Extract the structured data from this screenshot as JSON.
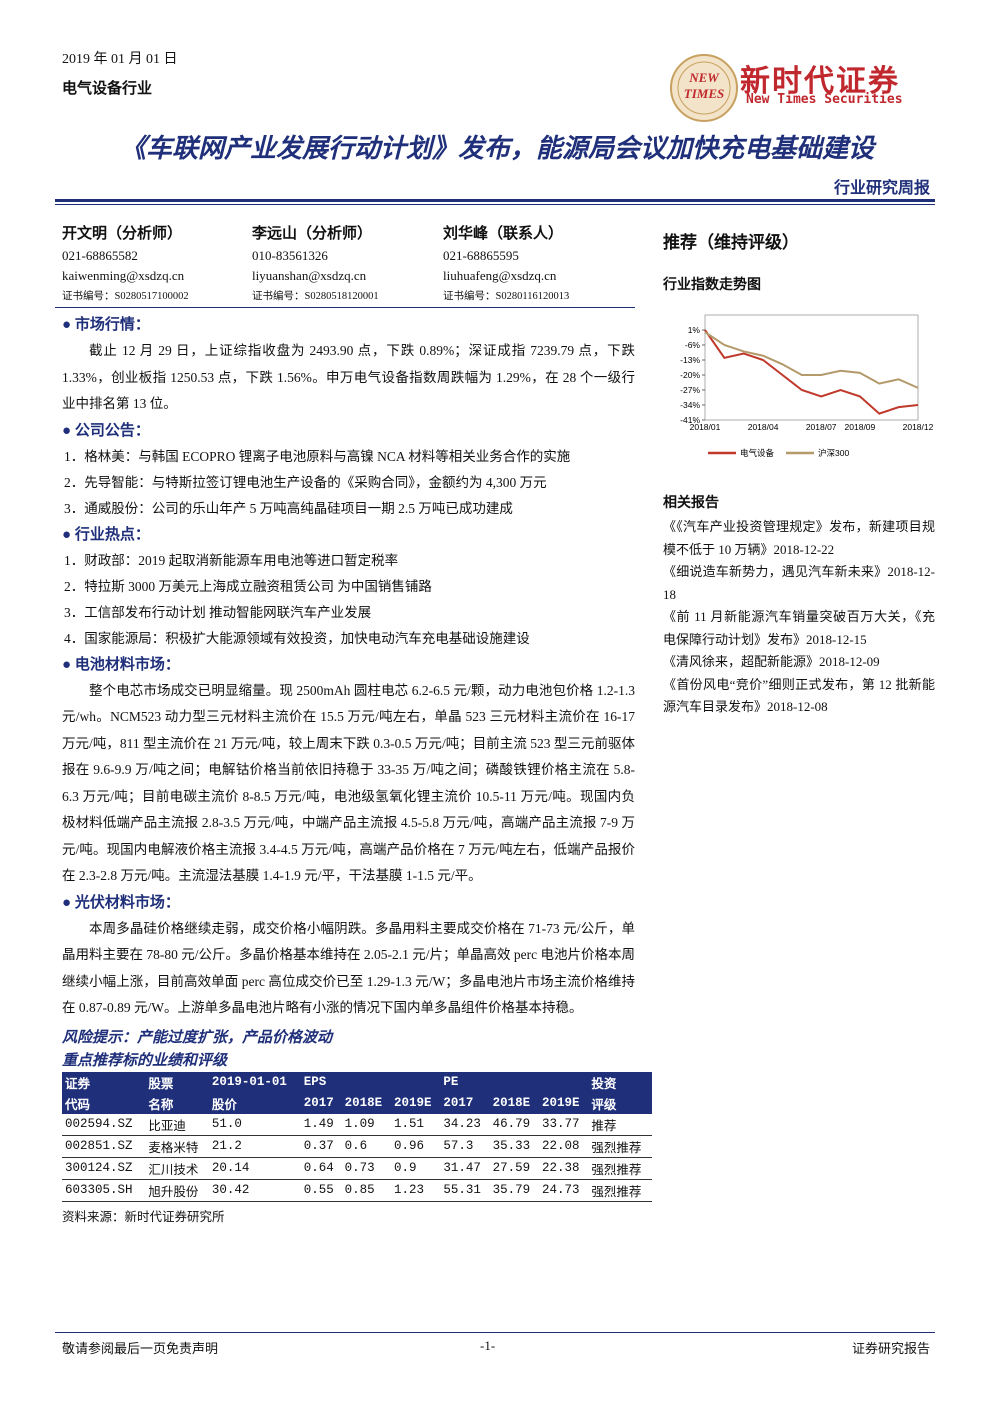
{
  "header": {
    "date": "2019 年 01 月 01 日",
    "industry": "电气设备行业",
    "logo_badge": [
      "NEW",
      "TIMES"
    ],
    "logo_cn": "新时代证券",
    "logo_en": "New Times Securities",
    "title": "《车联网产业发展行动计划》发布，能源局会议加快充电基础建设",
    "report_type": "行业研究周报"
  },
  "analysts": [
    {
      "name": "开文明（分析师）",
      "phone": "021-68865582",
      "email": "kaiwenming@xsdzq.cn",
      "cert": "证书编号：S0280517100002"
    },
    {
      "name": "李远山（分析师）",
      "phone": "010-83561326",
      "email": "liyuanshan@xsdzq.cn",
      "cert": "证书编号：S0280518120001"
    },
    {
      "name": "刘华峰（联系人）",
      "phone": "021-68865595",
      "email": "liuhuafeng@xsdzq.cn",
      "cert": "证书编号：S0280116120013"
    }
  ],
  "rating": "推荐（维持评级）",
  "chart": {
    "type": "line",
    "title": "行业指数走势图",
    "categories": [
      "2018/01",
      null,
      null,
      "2018/04",
      null,
      null,
      "2018/07",
      null,
      "2018/09",
      null,
      null,
      "2018/12"
    ],
    "series": [
      {
        "name": "电气设备",
        "color": "#c0392b",
        "values": [
          1,
          -12,
          -10,
          -13,
          -20,
          -27,
          -30,
          -27,
          -30,
          -38,
          -35,
          -34
        ]
      },
      {
        "name": "沪深300",
        "color": "#b49a6a",
        "values": [
          0,
          -6,
          -9,
          -11,
          -15,
          -20,
          -20,
          -18,
          -19,
          -24,
          -22,
          -26
        ]
      }
    ],
    "ylim": [
      -41,
      8
    ],
    "yticks": [
      {
        "value": 1,
        "label": "1%"
      },
      {
        "value": -6,
        "label": "-6%"
      },
      {
        "value": -13,
        "label": "-13%"
      },
      {
        "value": -20,
        "label": "-20%"
      },
      {
        "value": -27,
        "label": "-27%"
      },
      {
        "value": -34,
        "label": "-34%"
      },
      {
        "value": -41,
        "label": "-41%"
      }
    ]
  },
  "related": {
    "title": "相关报告",
    "items": [
      "《《汽车产业投资管理规定》发布，新建项目规模不低于 10 万辆》2018-12-22",
      "《细说造车新势力，遇见汽车新未来》2018-12-18",
      "《前 11 月新能源汽车销量突破百万大关，《充电保障行动计划》发布》2018-12-15",
      "《清风徐来，超配新能源》2018-12-09",
      "《首份风电“竞价”细则正式发布，第 12 批新能源汽车目录发布》2018-12-08"
    ]
  },
  "sections": [
    {
      "heading": "市场行情：",
      "paragraphs": [
        "截止 12 月 29 日，上证综指收盘为 2493.90 点，下跌 0.89%；深证成指 7239.79 点，下跌 1.33%，创业板指 1250.53 点，下跌 1.56%。申万电气设备指数周跌幅为 1.29%，在 28 个一级行业中排名第 13 位。"
      ]
    },
    {
      "heading": "公司公告：",
      "items": [
        "1．格林美：与韩国 ECOPRO 锂离子电池原料与高镍 NCA 材料等相关业务合作的实施",
        "2．先导智能：与特斯拉签订锂电池生产设备的《采购合同》，金额约为 4,300 万元",
        "3．通威股份：公司的乐山年产 5 万吨高纯晶硅项目一期 2.5 万吨已成功建成"
      ]
    },
    {
      "heading": "行业热点：",
      "items": [
        "1．财政部：2019 起取消新能源车用电池等进口暂定税率",
        "2．特拉斯 3000 万美元上海成立融资租赁公司 为中国销售铺路",
        "3．工信部发布行动计划 推动智能网联汽车产业发展",
        "4．国家能源局：积极扩大能源领域有效投资，加快电动汽车充电基础设施建设"
      ]
    },
    {
      "heading": "电池材料市场：",
      "paragraphs": [
        "整个电芯市场成交已明显缩量。现 2500mAh 圆柱电芯 6.2-6.5 元/颗，动力电池包价格 1.2-1.3 元/wh。NCM523 动力型三元材料主流价在 15.5 万元/吨左右，单晶 523 三元材料主流价在 16-17 万元/吨，811 型主流价在 21 万元/吨，较上周末下跌 0.3-0.5 万元/吨；目前主流 523 型三元前驱体报在 9.6-9.9 万/吨之间；电解钴价格当前依旧持稳于 33-35 万/吨之间；磷酸铁锂价格主流在 5.8-6.3 万元/吨；目前电碳主流价 8-8.5 万元/吨，电池级氢氧化锂主流价 10.5-11 万元/吨。现国内负极材料低端产品主流报 2.8-3.5 万元/吨，中端产品主流报 4.5-5.8 万元/吨，高端产品主流报 7-9 万元/吨。现国内电解液价格主流报 3.4-4.5 万元/吨，高端产品价格在 7 万元/吨左右，低端产品报价在 2.3-2.8 万元/吨。主流湿法基膜 1.4-1.9 元/平，干法基膜 1-1.5 元/平。"
      ]
    },
    {
      "heading": "光伏材料市场：",
      "paragraphs": [
        "本周多晶硅价格继续走弱，成交价格小幅阴跌。多晶用料主要成交价格在 71-73 元/公斤，单晶用料主要在 78-80 元/公斤。多晶价格基本维持在 2.05-2.1 元/片；单晶高效 perc 电池片价格本周继续小幅上涨，目前高效单面 perc 高位成交价已至 1.29-1.3 元/W；多晶电池片市场主流价格维持在 0.87-0.89 元/W。上游单多晶电池片略有小涨的情况下国内单多晶组件价格基本持稳。"
      ]
    }
  ],
  "risk": "风险提示：产能过度扩张，产品价格波动",
  "table": {
    "title": "重点推荐标的业绩和评级",
    "header": [
      [
        "证券",
        "股票",
        "2019-01-01",
        "EPS",
        "PE",
        "投资"
      ],
      [
        "代码",
        "名称",
        "股价",
        "2017",
        "2018E",
        "2019E",
        "2017",
        "2018E",
        "2019E",
        "评级"
      ]
    ],
    "rows": [
      [
        "002594.SZ",
        "比亚迪",
        "51.0",
        "1.49",
        "1.09",
        "1.51",
        "34.23",
        "46.79",
        "33.77",
        "推荐"
      ],
      [
        "002851.SZ",
        "麦格米特",
        "21.2",
        "0.37",
        "0.6",
        "0.96",
        "57.3",
        "35.33",
        "22.08",
        "强烈推荐"
      ],
      [
        "300124.SZ",
        "汇川技术",
        "20.14",
        "0.64",
        "0.73",
        "0.9",
        "31.47",
        "27.59",
        "22.38",
        "强烈推荐"
      ],
      [
        "603305.SH",
        "旭升股份",
        "30.42",
        "0.55",
        "0.85",
        "1.23",
        "55.31",
        "35.79",
        "24.73",
        "强烈推荐"
      ]
    ],
    "source": "资料来源：新时代证券研究所"
  },
  "footer": {
    "left": "敬请参阅最后一页免责声明",
    "page": "-1-",
    "right": "证券研究报告"
  }
}
